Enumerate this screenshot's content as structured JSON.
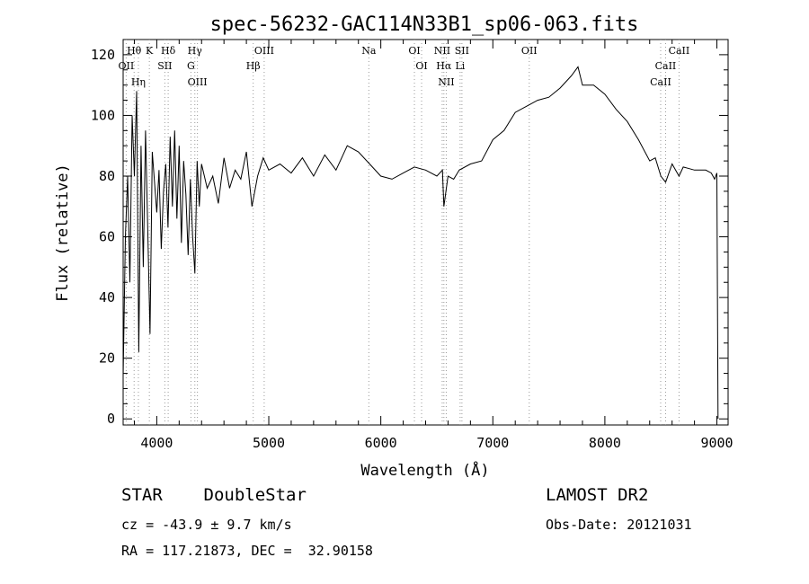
{
  "chart_data": {
    "type": "line",
    "title": "spec-56232-GAC114N33B1_sp06-063.fits",
    "xlabel": "Wavelength (Å)",
    "ylabel": "Flux (relative)",
    "xlim": [
      3700,
      9100
    ],
    "ylim": [
      -2,
      125
    ],
    "xticks": [
      4000,
      5000,
      6000,
      7000,
      8000,
      9000
    ],
    "yticks": [
      0,
      20,
      40,
      60,
      80,
      100,
      120
    ],
    "grid": false,
    "series": [
      {
        "x": [
          3700,
          3720,
          3740,
          3760,
          3780,
          3800,
          3820,
          3840,
          3860,
          3880,
          3900,
          3920,
          3940,
          3960,
          3980,
          4000,
          4020,
          4040,
          4060,
          4080,
          4100,
          4120,
          4140,
          4160,
          4180,
          4200,
          4220,
          4240,
          4260,
          4280,
          4300,
          4320,
          4340,
          4360,
          4380,
          4400,
          4450,
          4500,
          4550,
          4600,
          4650,
          4700,
          4750,
          4800,
          4850,
          4900,
          4950,
          5000,
          5100,
          5200,
          5300,
          5400,
          5500,
          5600,
          5700,
          5800,
          5900,
          6000,
          6100,
          6200,
          6300,
          6400,
          6500,
          6550,
          6563,
          6600,
          6650,
          6700,
          6800,
          6900,
          7000,
          7100,
          7200,
          7300,
          7400,
          7500,
          7600,
          7700,
          7760,
          7800,
          7900,
          8000,
          8100,
          8200,
          8300,
          8400,
          8450,
          8500,
          8542,
          8600,
          8662,
          8700,
          8800,
          8900,
          8950,
          8980,
          9000,
          9010
        ],
        "y": [
          14,
          60,
          80,
          45,
          100,
          80,
          108,
          22,
          90,
          50,
          95,
          62,
          28,
          88,
          78,
          68,
          82,
          56,
          75,
          84,
          63,
          93,
          70,
          95,
          66,
          90,
          58,
          85,
          74,
          54,
          79,
          60,
          48,
          85,
          70,
          84,
          76,
          80,
          71,
          86,
          76,
          82,
          79,
          88,
          70,
          80,
          86,
          82,
          84,
          81,
          86,
          80,
          87,
          82,
          90,
          88,
          84,
          80,
          79,
          81,
          83,
          82,
          80,
          82,
          70,
          80,
          79,
          82,
          84,
          85,
          92,
          95,
          101,
          103,
          105,
          106,
          109,
          113,
          116,
          110,
          110,
          107,
          102,
          98,
          92,
          85,
          86,
          80,
          78,
          84,
          80,
          83,
          82,
          82,
          81,
          79,
          81,
          0
        ]
      }
    ],
    "lines": [
      {
        "label": "Hθ",
        "x": 3798
      },
      {
        "label": "OII",
        "x": 3727
      },
      {
        "label": "Hη",
        "x": 3836
      },
      {
        "label": "K",
        "x": 3934
      },
      {
        "label": "SII",
        "x": 4072
      },
      {
        "label": "Hδ",
        "x": 4102
      },
      {
        "label": "Hγ",
        "x": 4340
      },
      {
        "label": "G",
        "x": 4305
      },
      {
        "label": "OIII",
        "x": 4363
      },
      {
        "label": "OIII",
        "x": 4959
      },
      {
        "label": "Hβ",
        "x": 4861
      },
      {
        "label": "Na",
        "x": 5893
      },
      {
        "label": "OI",
        "x": 6300
      },
      {
        "label": "OI",
        "x": 6364
      },
      {
        "label": "NII",
        "x": 6548
      },
      {
        "label": "Hα",
        "x": 6563
      },
      {
        "label": "SII",
        "x": 6724
      },
      {
        "label": "NII",
        "x": 6584
      },
      {
        "label": "Li",
        "x": 6708
      },
      {
        "label": "OII",
        "x": 7325
      },
      {
        "label": "CaII",
        "x": 8662
      },
      {
        "label": "CaII",
        "x": 8542
      },
      {
        "label": "CaII",
        "x": 8498
      }
    ]
  },
  "info": {
    "class_line": "STAR    DoubleStar",
    "survey": "LAMOST DR2",
    "cz": "cz = -43.9 ± 9.7 km/s",
    "obs_date": "Obs-Date: 20121031",
    "coords": "RA = 117.21873, DEC =  32.90158"
  }
}
